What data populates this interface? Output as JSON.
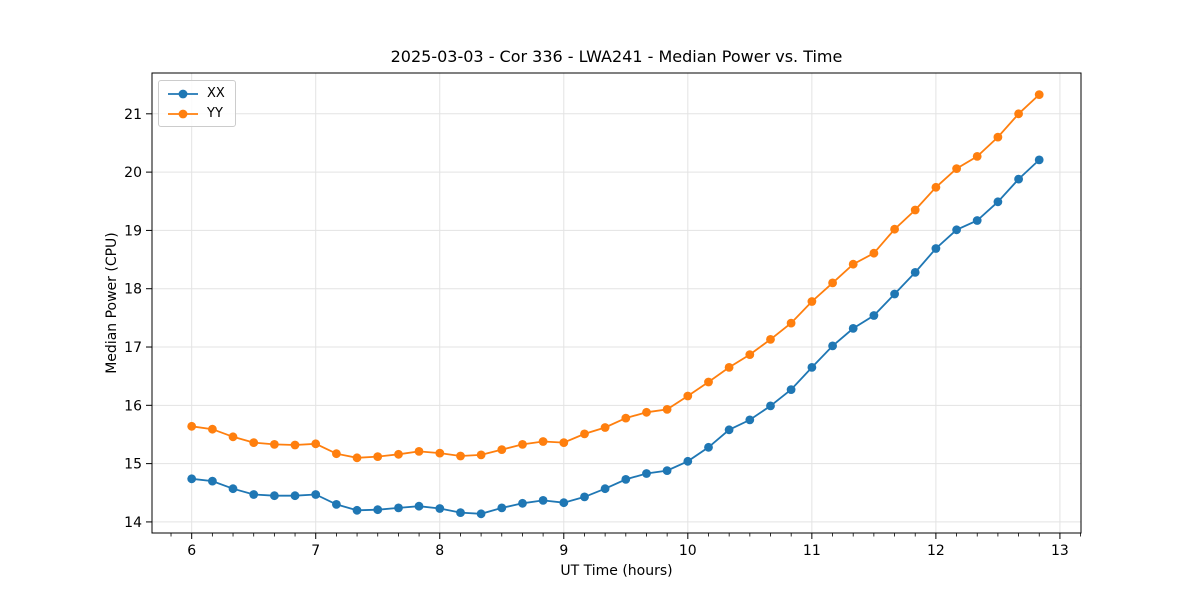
{
  "chart": {
    "title": "2025-03-03 - Cor 336 - LWA241 - Median Power vs. Time",
    "xlabel": "UT Time (hours)",
    "ylabel": "Median Power (CPU)",
    "legend": [
      {
        "label": "XX",
        "color": "#1f77b4"
      },
      {
        "label": "YY",
        "color": "#ff7f0e"
      }
    ]
  },
  "chart_data": {
    "type": "line",
    "title": "2025-03-03 - Cor 336 - LWA241 - Median Power vs. Time",
    "xlabel": "UT Time (hours)",
    "ylabel": "Median Power (CPU)",
    "xlim": [
      5.68,
      13.17
    ],
    "ylim": [
      13.81,
      21.7
    ],
    "xticks": [
      6,
      7,
      8,
      9,
      10,
      11,
      12,
      13
    ],
    "yticks": [
      14,
      15,
      16,
      17,
      18,
      19,
      20,
      21
    ],
    "x_minor_ticks_per_hour": 6,
    "grid": true,
    "grid_color": "#e3e3e3",
    "spine_color": "#000000",
    "legend_position": "upper left",
    "x": [
      6.0,
      6.167,
      6.333,
      6.5,
      6.667,
      6.833,
      7.0,
      7.167,
      7.333,
      7.5,
      7.667,
      7.833,
      8.0,
      8.167,
      8.333,
      8.5,
      8.667,
      8.833,
      9.0,
      9.167,
      9.333,
      9.5,
      9.667,
      9.833,
      10.0,
      10.167,
      10.333,
      10.5,
      10.667,
      10.833,
      11.0,
      11.167,
      11.333,
      11.5,
      11.667,
      11.833,
      12.0,
      12.167,
      12.333,
      12.5,
      12.667,
      12.833
    ],
    "series": [
      {
        "name": "XX",
        "color": "#1f77b4",
        "marker": "o",
        "values": [
          14.74,
          14.7,
          14.57,
          14.47,
          14.45,
          14.45,
          14.47,
          14.3,
          14.2,
          14.21,
          14.24,
          14.27,
          14.23,
          14.16,
          14.14,
          14.24,
          14.32,
          14.37,
          14.33,
          14.43,
          14.57,
          14.73,
          14.83,
          14.88,
          15.04,
          15.28,
          15.58,
          15.75,
          15.99,
          16.27,
          16.65,
          17.02,
          17.32,
          17.54,
          17.91,
          18.28,
          18.69,
          19.01,
          19.17,
          19.49,
          19.88,
          20.21
        ]
      },
      {
        "name": "YY",
        "color": "#ff7f0e",
        "marker": "o",
        "values": [
          15.64,
          15.59,
          15.46,
          15.36,
          15.33,
          15.32,
          15.34,
          15.17,
          15.1,
          15.12,
          15.16,
          15.21,
          15.18,
          15.13,
          15.15,
          15.24,
          15.33,
          15.38,
          15.36,
          15.51,
          15.62,
          15.78,
          15.88,
          15.93,
          16.16,
          16.4,
          16.65,
          16.87,
          17.13,
          17.41,
          17.78,
          18.1,
          18.42,
          18.61,
          19.02,
          19.35,
          19.74,
          20.06,
          20.27,
          20.6,
          21.0,
          21.33
        ]
      }
    ]
  }
}
